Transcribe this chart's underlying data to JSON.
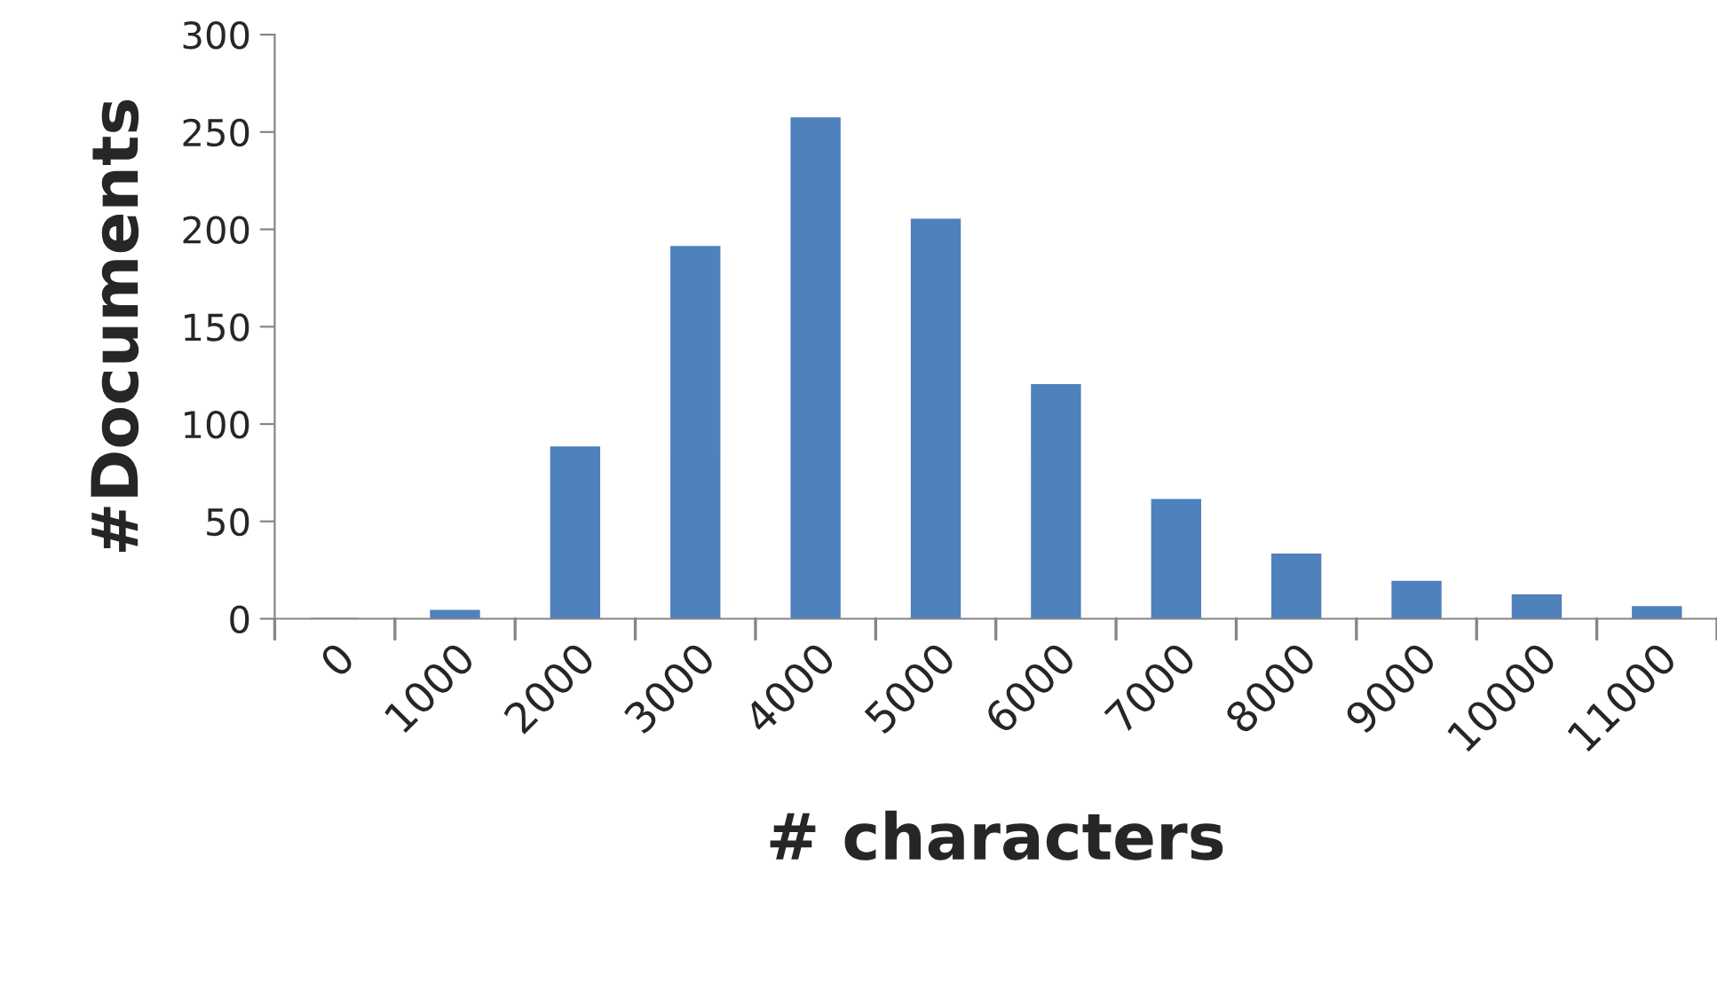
{
  "chart_data": {
    "type": "bar",
    "xlabel": "# characters",
    "ylabel": "#Documents",
    "categories": [
      "0",
      "1000",
      "2000",
      "3000",
      "4000",
      "5000",
      "6000",
      "7000",
      "8000",
      "9000",
      "10000",
      "11000"
    ],
    "values": [
      0,
      4,
      88,
      191,
      257,
      205,
      120,
      61,
      33,
      19,
      12,
      6
    ],
    "color": "#4f81bd",
    "ylim": [
      0,
      300
    ],
    "yticks": [
      0,
      50,
      100,
      150,
      200,
      250,
      300
    ],
    "grid": false,
    "legend": false
  }
}
